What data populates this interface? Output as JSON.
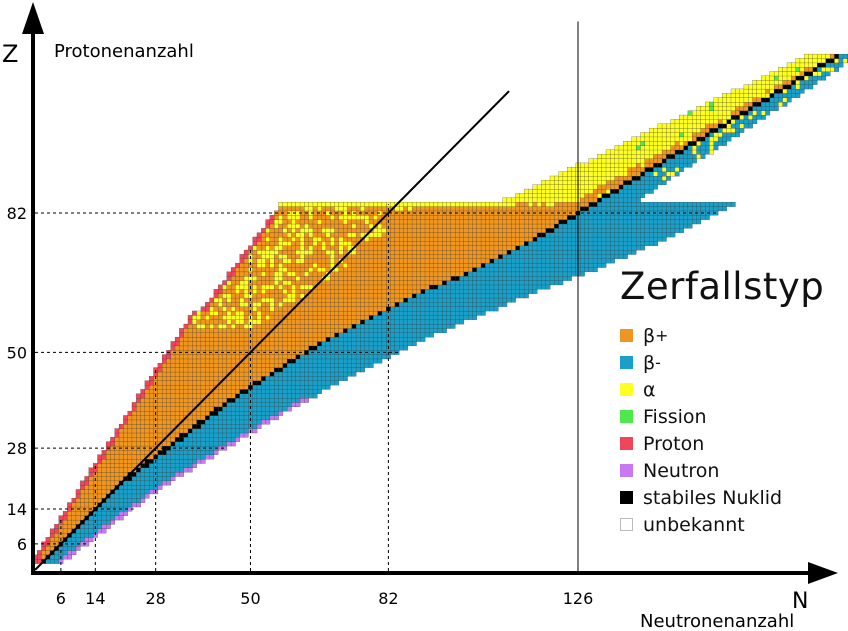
{
  "chart_data": {
    "type": "heatmap",
    "title": "",
    "xlabel": "Neutronenanzahl",
    "ylabel": "Protonenanzahl",
    "x_axis_symbol": "N",
    "y_axis_symbol": "Z",
    "magic_numbers": [
      6,
      14,
      28,
      50,
      82,
      126
    ],
    "x_ticks": [
      "6",
      "14",
      "28",
      "50",
      "82",
      "126"
    ],
    "y_ticks": [
      "6",
      "14",
      "28",
      "50",
      "82"
    ],
    "xlim": [
      0,
      185
    ],
    "ylim": [
      0,
      118
    ],
    "reference_line": "N = Z",
    "stability_valley": [
      [
        2,
        2
      ],
      [
        6,
        6
      ],
      [
        10,
        10
      ],
      [
        14,
        14
      ],
      [
        20,
        20
      ],
      [
        28,
        26
      ],
      [
        36,
        32
      ],
      [
        44,
        38
      ],
      [
        50,
        42
      ],
      [
        58,
        47
      ],
      [
        66,
        52
      ],
      [
        74,
        56
      ],
      [
        82,
        60
      ],
      [
        90,
        64
      ],
      [
        100,
        68
      ],
      [
        108,
        72
      ],
      [
        116,
        76
      ],
      [
        126,
        82
      ]
    ],
    "legend": {
      "title": "Zerfallstyp",
      "entries": [
        {
          "label": "β",
          "sup": "+",
          "color": "#f0961e"
        },
        {
          "label": "β",
          "sup": "-",
          "color": "#1aa0c8"
        },
        {
          "label": "α",
          "sup": "",
          "color": "#ffff22"
        },
        {
          "label": "Fission",
          "sup": "",
          "color": "#4ce84c"
        },
        {
          "label": "Proton",
          "sup": "",
          "color": "#f0465a"
        },
        {
          "label": "Neutron",
          "sup": "",
          "color": "#c878f0"
        },
        {
          "label": "stabiles Nuklid",
          "sup": "",
          "color": "#000000"
        },
        {
          "label": "unbekannt",
          "sup": "",
          "color": "#ffffff"
        }
      ]
    }
  }
}
